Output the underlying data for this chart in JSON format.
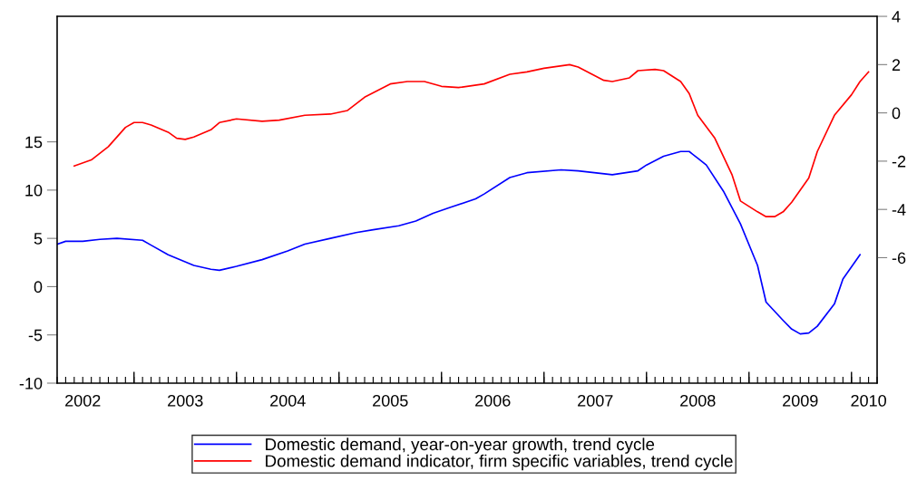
{
  "chart_data": {
    "type": "line",
    "xlim": [
      "2002-04",
      "2010-04"
    ],
    "xticks": [
      {
        "value": "2002-07",
        "label": "2002"
      },
      {
        "value": "2003-07",
        "label": "2003"
      },
      {
        "value": "2004-07",
        "label": "2004"
      },
      {
        "value": "2005-07",
        "label": "2005"
      },
      {
        "value": "2006-07",
        "label": "2006"
      },
      {
        "value": "2007-07",
        "label": "2007"
      },
      {
        "value": "2008-07",
        "label": "2008"
      },
      {
        "value": "2009-07",
        "label": "2009"
      },
      {
        "value": "2010-03",
        "label": "2010"
      },
      {
        "value": "2003-01",
        "label": null
      },
      {
        "value": "2004-01",
        "label": null
      },
      {
        "value": "2005-01",
        "label": null
      },
      {
        "value": "2006-01",
        "label": null
      },
      {
        "value": "2007-01",
        "label": null
      },
      {
        "value": "2008-01",
        "label": null
      },
      {
        "value": "2009-01",
        "label": null
      },
      {
        "value": "2010-01",
        "label": null
      }
    ],
    "ylim": [
      -10,
      28
    ],
    "yticks": [
      -10,
      -5,
      0,
      5,
      10,
      15
    ],
    "y2lim": [
      -11.2,
      4
    ],
    "y2ticks": [
      -6,
      -4,
      -2,
      0,
      2,
      4
    ],
    "grid": false,
    "legend": "bottom",
    "marker": "none",
    "line_style": "solid",
    "series": [
      {
        "name": "Domestic demand, year-on-year growth, trend cycle",
        "color": "#0000ff",
        "axis": "y",
        "x": [
          "2002-04",
          "2002-05",
          "2002-07",
          "2002-09",
          "2002-11",
          "2003-02",
          "2003-03",
          "2003-05",
          "2003-08",
          "2003-10",
          "2003-11",
          "2004-01",
          "2004-04",
          "2004-07",
          "2004-09",
          "2004-12",
          "2005-03",
          "2005-05",
          "2005-08",
          "2005-10",
          "2005-12",
          "2006-02",
          "2006-05",
          "2006-06",
          "2006-09",
          "2006-11",
          "2007-03",
          "2007-05",
          "2007-09",
          "2007-12",
          "2008-01",
          "2008-03",
          "2008-05",
          "2008-06",
          "2008-07",
          "2008-08",
          "2008-10",
          "2008-12",
          "2009-02",
          "2009-03",
          "2009-05",
          "2009-06",
          "2009-07",
          "2009-08",
          "2009-09",
          "2009-11",
          "2009-12",
          "2010-02"
        ],
        "values": [
          4.4,
          4.7,
          4.7,
          4.9,
          5.0,
          4.8,
          4.3,
          3.3,
          2.2,
          1.8,
          1.7,
          2.1,
          2.8,
          3.7,
          4.4,
          5.0,
          5.6,
          5.9,
          6.3,
          6.8,
          7.6,
          8.2,
          9.1,
          9.6,
          11.3,
          11.8,
          12.1,
          12.0,
          11.6,
          12.0,
          12.6,
          13.5,
          14.0,
          14.0,
          13.3,
          12.6,
          9.9,
          6.5,
          2.2,
          -1.6,
          -3.5,
          -4.4,
          -4.9,
          -4.8,
          -4.1,
          -1.8,
          0.8,
          3.3
        ]
      },
      {
        "name": "Domestic demand indicator, firm specific variables, trend cycle",
        "color": "#ff0000",
        "axis": "y2",
        "x": [
          "2002-06",
          "2002-08",
          "2002-10",
          "2002-12",
          "2003-01",
          "2003-02",
          "2003-03",
          "2003-05",
          "2003-06",
          "2003-07",
          "2003-08",
          "2003-10",
          "2003-11",
          "2004-01",
          "2004-04",
          "2004-06",
          "2004-09",
          "2004-12",
          "2005-02",
          "2005-04",
          "2005-07",
          "2005-09",
          "2005-11",
          "2006-01",
          "2006-03",
          "2006-06",
          "2006-09",
          "2006-11",
          "2007-01",
          "2007-04",
          "2007-05",
          "2007-08",
          "2007-09",
          "2007-11",
          "2007-12",
          "2008-02",
          "2008-03",
          "2008-05",
          "2008-06",
          "2008-07",
          "2008-09",
          "2008-11",
          "2008-12",
          "2009-02",
          "2009-03",
          "2009-04",
          "2009-05",
          "2009-06",
          "2009-08",
          "2009-09",
          "2009-11",
          "2010-01",
          "2010-02",
          "2010-03"
        ],
        "values": [
          -2.2,
          -1.95,
          -1.4,
          -0.6,
          -0.4,
          -0.4,
          -0.5,
          -0.8,
          -1.05,
          -1.1,
          -1.0,
          -0.7,
          -0.4,
          -0.25,
          -0.35,
          -0.3,
          -0.1,
          -0.05,
          0.1,
          0.65,
          1.2,
          1.3,
          1.3,
          1.1,
          1.05,
          1.2,
          1.6,
          1.7,
          1.85,
          2.0,
          1.9,
          1.35,
          1.3,
          1.45,
          1.75,
          1.8,
          1.75,
          1.3,
          0.8,
          -0.1,
          -1.05,
          -2.55,
          -3.65,
          -4.1,
          -4.3,
          -4.3,
          -4.1,
          -3.7,
          -2.7,
          -1.6,
          -0.1,
          0.75,
          1.3,
          1.7
        ]
      }
    ]
  }
}
